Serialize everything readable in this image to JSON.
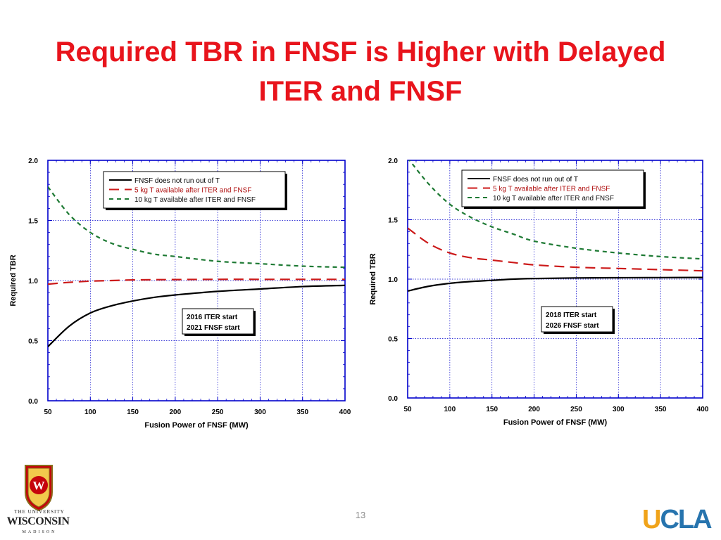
{
  "slide": {
    "title_line1": "Required TBR in FNSF is Higher with Delayed",
    "title_line2": "ITER and FNSF",
    "slide_number": "13",
    "logo_left": {
      "line1": "THE UNIVERSITY",
      "line2": "WISCONSIN",
      "of": "of",
      "line3": "MADISON",
      "crest_letter": "W"
    },
    "logo_right": {
      "u": "U",
      "cla": "CLA"
    }
  },
  "colors": {
    "title": "#e8141c",
    "black_series": "#000000",
    "red_series": "#cc1a1a",
    "green_series": "#1e7a34",
    "frame": "#0000cc",
    "grid": "#0000cc"
  },
  "chart_data": [
    {
      "type": "line",
      "xlabel": "Fusion Power of FNSF (MW)",
      "ylabel": "Required TBR",
      "xlim": [
        50,
        400
      ],
      "ylim": [
        0,
        2
      ],
      "xticks": [
        "50",
        "100",
        "150",
        "200",
        "250",
        "300",
        "350",
        "400"
      ],
      "yticks": [
        "0.0",
        "0.5",
        "1.0",
        "1.5",
        "2.0"
      ],
      "grid": true,
      "legend_position": "top-center",
      "annotation": [
        "2016 ITER start",
        "2021 FNSF start"
      ],
      "x": [
        50,
        75,
        100,
        125,
        150,
        175,
        200,
        250,
        300,
        350,
        400
      ],
      "series": [
        {
          "name": "FNSF does not run out of T",
          "style": "solid",
          "color": "#000000",
          "values": [
            0.45,
            0.62,
            0.73,
            0.79,
            0.83,
            0.86,
            0.88,
            0.91,
            0.93,
            0.95,
            0.96
          ]
        },
        {
          "name": "5 kg T available after ITER and FNSF",
          "style": "dashed",
          "color": "#cc1a1a",
          "values": [
            0.97,
            0.985,
            0.995,
            1.0,
            1.005,
            1.007,
            1.008,
            1.01,
            1.01,
            1.01,
            1.01
          ]
        },
        {
          "name": "10 kg T available after ITER and FNSF",
          "style": "dotted",
          "color": "#1e7a34",
          "values": [
            1.78,
            1.55,
            1.4,
            1.31,
            1.26,
            1.22,
            1.2,
            1.16,
            1.14,
            1.12,
            1.11
          ]
        }
      ]
    },
    {
      "type": "line",
      "xlabel": "Fusion Power of FNSF (MW)",
      "ylabel": "Required TBR",
      "xlim": [
        50,
        400
      ],
      "ylim": [
        0,
        2
      ],
      "xticks": [
        "50",
        "100",
        "150",
        "200",
        "250",
        "300",
        "350",
        "400"
      ],
      "yticks": [
        "0.0",
        "0.5",
        "1.0",
        "1.5",
        "2.0"
      ],
      "grid": true,
      "legend_position": "top-center",
      "annotation": [
        "2018 ITER start",
        "2026 FNSF start"
      ],
      "x": [
        50,
        75,
        100,
        125,
        150,
        175,
        200,
        250,
        300,
        350,
        400
      ],
      "series": [
        {
          "name": "FNSF does not run out of T",
          "style": "solid",
          "color": "#000000",
          "values": [
            0.9,
            0.94,
            0.965,
            0.98,
            0.99,
            1.0,
            1.005,
            1.01,
            1.012,
            1.013,
            1.014
          ]
        },
        {
          "name": "5 kg T available after ITER and FNSF",
          "style": "dashed",
          "color": "#cc1a1a",
          "values": [
            1.43,
            1.3,
            1.22,
            1.18,
            1.16,
            1.14,
            1.12,
            1.1,
            1.09,
            1.08,
            1.07
          ]
        },
        {
          "name": "10 kg T available after ITER and FNSF",
          "style": "dotted",
          "color": "#1e7a34",
          "values": [
            2.02,
            1.8,
            1.63,
            1.52,
            1.44,
            1.38,
            1.32,
            1.26,
            1.22,
            1.19,
            1.17
          ]
        }
      ]
    }
  ]
}
